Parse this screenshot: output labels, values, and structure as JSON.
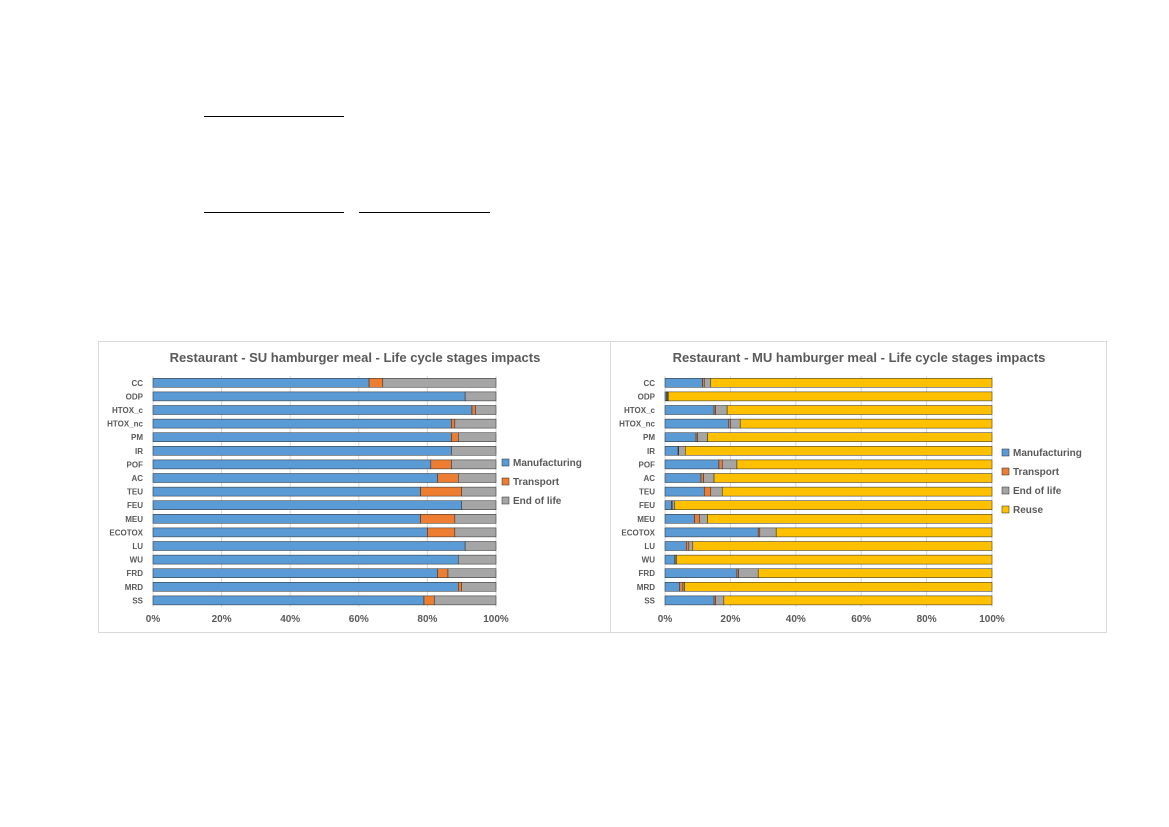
{
  "chart_data": [
    {
      "type": "bar",
      "orientation": "horizontal",
      "stacked": "percent",
      "title": "Restaurant - SU hamburger meal - Life cycle stages impacts",
      "categories": [
        "CC",
        "ODP",
        "HTOX_c",
        "HTOX_nc",
        "PM",
        "IR",
        "POF",
        "AC",
        "TEU",
        "FEU",
        "MEU",
        "ECOTOX",
        "LU",
        "WU",
        "FRD",
        "MRD",
        "SS"
      ],
      "x_ticks": [
        "0%",
        "20%",
        "40%",
        "60%",
        "80%",
        "100%"
      ],
      "xlim": [
        0,
        100
      ],
      "grid": true,
      "legend_position": "right",
      "series": [
        {
          "name": "Manufacturing",
          "color": "#5b9bd5",
          "values": [
            63,
            91,
            93,
            87,
            87,
            87,
            81,
            83,
            78,
            90,
            78,
            80,
            91,
            89,
            83,
            89,
            79
          ]
        },
        {
          "name": "Transport",
          "color": "#ed7d31",
          "values": [
            4,
            0,
            1,
            1,
            2,
            0,
            6,
            6,
            12,
            0,
            10,
            8,
            0,
            0,
            3,
            1,
            3
          ]
        },
        {
          "name": "End of life",
          "color": "#a5a5a5",
          "values": [
            33,
            9,
            6,
            12,
            11,
            13,
            13,
            11,
            10,
            10,
            12,
            12,
            9,
            11,
            14,
            10,
            18
          ]
        }
      ]
    },
    {
      "type": "bar",
      "orientation": "horizontal",
      "stacked": "percent",
      "title": "Restaurant - MU hamburger meal - Life cycle stages impacts",
      "categories": [
        "CC",
        "ODP",
        "HTOX_c",
        "HTOX_nc",
        "PM",
        "IR",
        "POF",
        "AC",
        "TEU",
        "FEU",
        "MEU",
        "ECOTOX",
        "LU",
        "WU",
        "FRD",
        "MRD",
        "SS"
      ],
      "x_ticks": [
        "0%",
        "20%",
        "40%",
        "60%",
        "80%",
        "100%"
      ],
      "xlim": [
        0,
        100
      ],
      "grid": true,
      "legend_position": "right",
      "series": [
        {
          "name": "Manufacturing",
          "color": "#5b9bd5",
          "values": [
            11.5,
            0.5,
            15,
            19.5,
            9.5,
            4,
            16.5,
            11,
            12,
            2,
            9,
            28.5,
            6.5,
            3,
            22,
            4.5,
            15
          ]
        },
        {
          "name": "Transport",
          "color": "#ed7d31",
          "values": [
            0.5,
            0.3,
            0.5,
            0.5,
            0.5,
            0.2,
            1,
            0.8,
            2,
            0.2,
            1.5,
            0.5,
            0.8,
            0.1,
            0.5,
            1,
            0.5
          ]
        },
        {
          "name": "End of life",
          "color": "#a5a5a5",
          "values": [
            2,
            0.2,
            3.5,
            3,
            3,
            2,
            4.5,
            3.2,
            3.5,
            0.8,
            2.5,
            5,
            1.2,
            0.4,
            6,
            0.5,
            2.5
          ]
        },
        {
          "name": "Reuse",
          "color": "#ffc000",
          "values": [
            86,
            99,
            81,
            77,
            87,
            93.8,
            78,
            85,
            82.5,
            97,
            87,
            66,
            91.5,
            96.5,
            71.5,
            94,
            82
          ]
        }
      ]
    }
  ]
}
